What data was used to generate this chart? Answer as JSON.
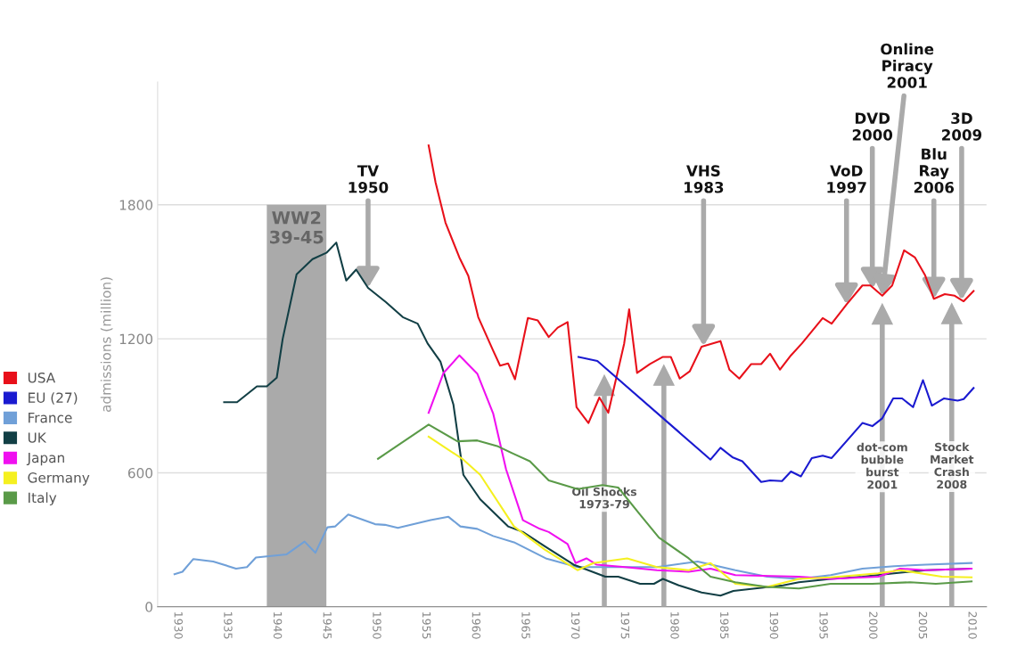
{
  "chart_data": {
    "type": "line",
    "ylabel": "admissions (million)",
    "xlim": [
      1928,
      2011.5
    ],
    "ylim": [
      0,
      2350
    ],
    "xticks": [
      1930,
      1935,
      1940,
      1945,
      1950,
      1955,
      1960,
      1965,
      1970,
      1975,
      1980,
      1985,
      1990,
      1995,
      2000,
      2005,
      2010
    ],
    "yticks": [
      0,
      600,
      1200,
      1800
    ],
    "grid": "y",
    "legend": "left",
    "marker": "none",
    "line_style": "solid",
    "series": [
      {
        "name": "USA",
        "color": "#e8101a",
        "x": [
          1955.3,
          1956,
          1957,
          1958.4,
          1959.3,
          1960.3,
          1961.8,
          1962.5,
          1963.3,
          1964,
          1965.3,
          1966.3,
          1967.4,
          1968.3,
          1969.3,
          1970.2,
          1971.4,
          1972.5,
          1973.4,
          1975,
          1975.5,
          1976.3,
          1977.6,
          1978.9,
          1979.7,
          1980.6,
          1981.6,
          1982.8,
          1984.7,
          1985.6,
          1986.6,
          1987.8,
          1988.8,
          1989.7,
          1990.7,
          1991.8,
          1992.9,
          1995,
          1995.9,
          1997.4,
          1999,
          1999.8,
          2001,
          2002,
          2003.2,
          2004.3,
          2005.3,
          2006.2,
          2007.3,
          2008.3,
          2009.2,
          2010.2
        ],
        "values": [
          2066,
          1900,
          1720,
          1564,
          1482,
          1297,
          1147,
          1080,
          1090,
          1019,
          1293,
          1282,
          1208,
          1250,
          1275,
          894,
          823,
          937,
          869,
          1179,
          1332,
          1047,
          1087,
          1119,
          1119,
          1022,
          1054,
          1165,
          1190,
          1062,
          1022,
          1087,
          1087,
          1133,
          1062,
          1126,
          1179,
          1293,
          1268,
          1354,
          1439,
          1439,
          1393,
          1439,
          1596,
          1564,
          1486,
          1379,
          1400,
          1393,
          1368,
          1414
        ]
      },
      {
        "name": "EU (27)",
        "color": "#1a1ad0",
        "x": [
          1970.4,
          1972.3,
          1983.7,
          1984.7,
          1985.9,
          1986.9,
          1988.8,
          1989.7,
          1990.9,
          1991.8,
          1992.8,
          1993.9,
          1995,
          1995.9,
          1999,
          2000,
          2001,
          2002.1,
          2003,
          2004.1,
          2005.1,
          2006,
          2007.2,
          2008.6,
          2009.2,
          2010.2
        ],
        "values": [
          1119,
          1101,
          659,
          712,
          670,
          652,
          559,
          566,
          563,
          606,
          584,
          666,
          677,
          666,
          823,
          809,
          844,
          933,
          933,
          894,
          1015,
          901,
          933,
          923,
          930,
          980
        ]
      },
      {
        "name": "France",
        "color": "#70a0d8",
        "x": [
          1929.7,
          1930.5,
          1931.6,
          1933.6,
          1935.9,
          1937,
          1937.9,
          1941,
          1942.8,
          1943.9,
          1945.1,
          1945.9,
          1947.2,
          1949.9,
          1950.9,
          1952.2,
          1955.5,
          1957.3,
          1958.5,
          1960.2,
          1961.8,
          1963.9,
          1967.1,
          1970.3,
          1973.4,
          1978.3,
          1982.4,
          1986.2,
          1989.4,
          1992.6,
          1995.8,
          1999,
          2002.2,
          2005.4,
          2010
        ],
        "values": [
          146,
          157,
          214,
          203,
          171,
          178,
          221,
          235,
          292,
          242,
          356,
          360,
          413,
          370,
          367,
          353,
          388,
          403,
          360,
          349,
          317,
          289,
          217,
          178,
          178,
          178,
          203,
          164,
          135,
          125,
          142,
          171,
          182,
          189,
          196
        ]
      },
      {
        "name": "UK",
        "color": "#123f45",
        "x": [
          1934.7,
          1936,
          1938,
          1939,
          1940,
          1940.6,
          1942,
          1943.6,
          1945,
          1946,
          1947,
          1948,
          1949.2,
          1951,
          1952.7,
          1954.2,
          1955.2,
          1956.5,
          1957.8,
          1958.8,
          1960.5,
          1963.3,
          1964.8,
          1967,
          1969.9,
          1973.1,
          1974.4,
          1976.6,
          1978,
          1978.9,
          1980.5,
          1982.8,
          1984.7,
          1986,
          1988.8,
          1991,
          1992.6,
          1995.8,
          1999,
          2002.2,
          2005.4,
          2009.8
        ],
        "values": [
          916,
          916,
          987,
          987,
          1026,
          1200,
          1489,
          1557,
          1585,
          1631,
          1461,
          1510,
          1428,
          1364,
          1297,
          1268,
          1179,
          1097,
          905,
          591,
          481,
          360,
          335,
          271,
          189,
          135,
          135,
          103,
          103,
          125,
          96,
          64,
          50,
          71,
          85,
          96,
          110,
          125,
          135,
          150,
          164,
          171
        ]
      },
      {
        "name": "Japan",
        "color": "#f010f0",
        "x": [
          1955.3,
          1956.8,
          1958.4,
          1960.2,
          1961.8,
          1963.1,
          1964.8,
          1966.5,
          1967.4,
          1969.3,
          1970.1,
          1971.2,
          1972.2,
          1975.1,
          1978.3,
          1981.5,
          1983.7,
          1986.2,
          1992.6,
          1995.8,
          2000.6,
          2002.8,
          2005.4,
          2010
        ],
        "values": [
          869,
          1047,
          1126,
          1044,
          866,
          616,
          388,
          349,
          335,
          281,
          196,
          217,
          189,
          178,
          164,
          157,
          171,
          142,
          135,
          125,
          135,
          171,
          164,
          171
        ]
      },
      {
        "name": "Germany",
        "color": "#f5f020",
        "x": [
          1955.3,
          1958.8,
          1960.5,
          1963.9,
          1967,
          1970.3,
          1971.9,
          1975.3,
          1978.3,
          1981.5,
          1983.7,
          1986.2,
          1989.4,
          1992.6,
          1995.8,
          2000.6,
          2002.8,
          2007,
          2010
        ],
        "values": [
          762,
          659,
          591,
          360,
          256,
          164,
          196,
          217,
          178,
          164,
          196,
          103,
          89,
          125,
          132,
          150,
          164,
          135,
          132
        ]
      },
      {
        "name": "Italy",
        "color": "#5a9a48",
        "x": [
          1950.2,
          1955.3,
          1958.2,
          1960.2,
          1962.2,
          1963.9,
          1965.5,
          1967.4,
          1970.3,
          1972.8,
          1974.4,
          1976.6,
          1978.5,
          1981.5,
          1983.7,
          1986.2,
          1989.4,
          1992.6,
          1995.8,
          2000,
          2003.8,
          2006.4,
          2010
        ],
        "values": [
          663,
          816,
          741,
          745,
          720,
          684,
          652,
          566,
          527,
          545,
          534,
          413,
          310,
          217,
          135,
          110,
          89,
          82,
          103,
          103,
          110,
          103,
          114
        ]
      }
    ],
    "bands": [
      {
        "axis": "x",
        "from": 1939,
        "to": 1945,
        "label": "WW2\n39-45",
        "color": "#aaaaaa"
      }
    ],
    "ref_lines": [
      {
        "axis": "x",
        "value": 1973,
        "label": "Oil Shocks\n1973-79",
        "color": "#aaaaaa"
      },
      {
        "axis": "x",
        "value": 1979,
        "label": null,
        "color": "#aaaaaa"
      },
      {
        "axis": "x",
        "value": 2001,
        "label": "dot-com\nbubble\nburst\n2001",
        "color": "#aaaaaa"
      },
      {
        "axis": "x",
        "value": 2008,
        "label": "Stock\nMarket\nCrash\n2008",
        "color": "#aaaaaa"
      }
    ],
    "annotations": [
      {
        "text": "TV\n1950",
        "x": 1949.2,
        "y": 1428
      },
      {
        "text": "VHS\n1983",
        "x": 1983,
        "y": 1168
      },
      {
        "text": "VoD\n1997",
        "x": 1997.4,
        "y": 1354
      },
      {
        "text": "DVD\n2000",
        "x": 2000,
        "y": 1424
      },
      {
        "text": "Online\nPiracy\n2001",
        "x": 2001,
        "y": 1393
      },
      {
        "text": "Blu\nRay\n2006",
        "x": 2006.2,
        "y": 1379
      },
      {
        "text": "3D\n2009",
        "x": 2009,
        "y": 1374
      }
    ]
  }
}
